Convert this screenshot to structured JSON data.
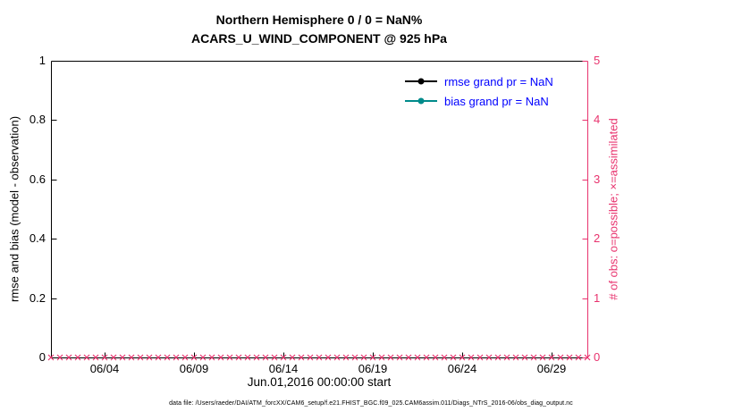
{
  "chart_data": {
    "type": "line",
    "title": "Northern Hemisphere 0 / 0 = NaN%",
    "subtitle": "ACARS_U_WIND_COMPONENT @ 925 hPa",
    "xlabel": "Jun.01,2016 00:00:00 start",
    "ylabel_left": "rmse and bias (model - observation)",
    "ylabel_right": "# of obs: o=possible; ×=assimilated",
    "caption": "data file: /Users/raeder/DAI/ATM_forcXX/CAM6_setup/f.e21.FHIST_BGC.f09_025.CAM6assim.011/Diags_NTrS_2016-06/obs_diag_output.nc",
    "grid": false,
    "x_range_days": [
      0,
      30
    ],
    "x_ticks": [
      "06/04",
      "06/09",
      "06/14",
      "06/19",
      "06/24",
      "06/29"
    ],
    "x_tick_days": [
      3,
      8,
      13,
      18,
      23,
      28
    ],
    "ylim_left": [
      0,
      1
    ],
    "y_ticks_left": [
      "0",
      "0.2",
      "0.4",
      "0.6",
      "0.8",
      "1"
    ],
    "y_tick_values_left": [
      0,
      0.2,
      0.4,
      0.6,
      0.8,
      1
    ],
    "ylim_right": [
      0,
      5
    ],
    "y_ticks_right": [
      "0",
      "1",
      "2",
      "3",
      "4",
      "5"
    ],
    "y_tick_values_right": [
      0,
      1,
      2,
      3,
      4,
      5
    ],
    "series": [
      {
        "name": "rmse",
        "grand_pr": "NaN",
        "values": []
      },
      {
        "name": "bias",
        "grand_pr": "NaN",
        "values": []
      }
    ],
    "obs_markers": {
      "axis": "right",
      "y_value": 0,
      "day_start": 0,
      "day_end": 30,
      "interval_days": 0.5,
      "marker": "x",
      "color": "#e8336e"
    },
    "colors": {
      "left_axis": "#000000",
      "right_axis": "#e8336e"
    },
    "legend": {
      "position": "top-right",
      "text_color": "#0000ff",
      "entries": [
        {
          "label": "rmse grand pr = NaN",
          "color": "#000000"
        },
        {
          "label": "bias grand pr = NaN",
          "color": "#008b8b"
        }
      ]
    }
  }
}
